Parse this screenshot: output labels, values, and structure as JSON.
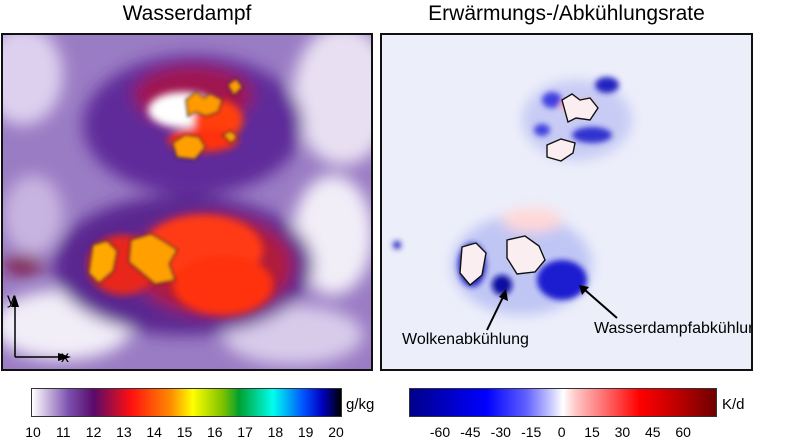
{
  "left_panel": {
    "title": "Wasserdampf",
    "axis_y_label": "y",
    "axis_x_label": "x",
    "colorbar": {
      "unit": "g/kg",
      "ticks": [
        "10",
        "11",
        "12",
        "13",
        "14",
        "15",
        "16",
        "17",
        "18",
        "19",
        "20"
      ],
      "range": [
        10,
        20
      ],
      "colors": [
        "#ffffff",
        "#7b4fae",
        "#5a0a6a",
        "#ff1010",
        "#ff8c00",
        "#ffff00",
        "#7ac000",
        "#00a030",
        "#00ffee",
        "#0050ff",
        "#0000c0",
        "#000000"
      ]
    }
  },
  "right_panel": {
    "title": "Erwärmungs-/Abkühlungsrate",
    "annotations": {
      "cloud_cooling": "Wolkenabkühlung",
      "vapour_cooling": "Wasserdampfabkühlung"
    },
    "colorbar": {
      "unit": "K/d",
      "ticks": [
        "-60",
        "-45",
        "-30",
        "-15",
        "0",
        "15",
        "30",
        "45",
        "60"
      ],
      "range": [
        -75,
        75
      ],
      "colors": [
        "#00008a",
        "#0000d0",
        "#0000ff",
        "#6060ff",
        "#c8c8ff",
        "#ffffff",
        "#ffc8c8",
        "#ff6060",
        "#ff0000",
        "#c00000",
        "#700000"
      ]
    }
  }
}
